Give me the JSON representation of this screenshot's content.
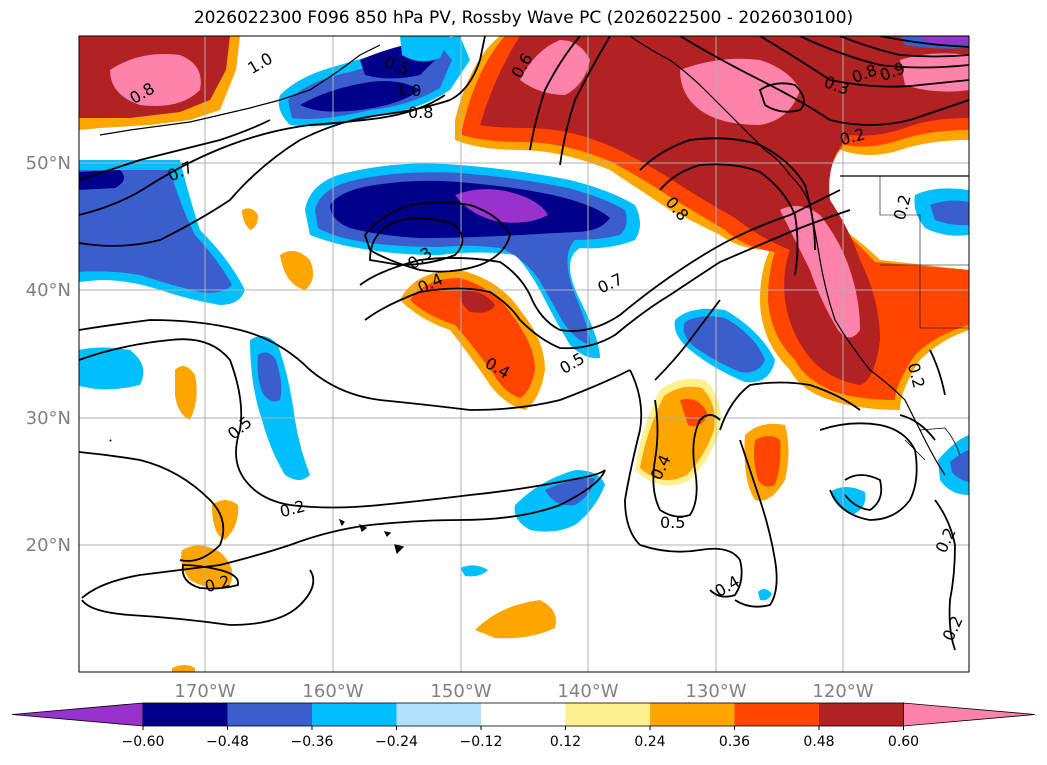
{
  "title": "2026022300 F096 850 hPa PV, Rossby Wave PC (2026022500 - 2026030100)",
  "lon_labels": [
    "170°W",
    "160°W",
    "150°W",
    "140°W",
    "130°W",
    "120°W"
  ],
  "lat_labels": [
    "20°N",
    "30°N",
    "40°N",
    "50°N"
  ],
  "colorbar": {
    "tick_labels": [
      "−0.60",
      "−0.48",
      "−0.36",
      "−0.24",
      "−0.12",
      "0.12",
      "0.24",
      "0.36",
      "0.48",
      "0.60"
    ],
    "colors": [
      "#9932cc",
      "#00008b",
      "#3a5fcd",
      "#00bfff",
      "#b0e2ff",
      "#ffffff",
      "#fff08f",
      "#ffa500",
      "#ff4500",
      "#b22222",
      "#ff82ab"
    ]
  },
  "contour_labels": {
    "c1": "0.8",
    "c2": "1.0",
    "c3": "0.5",
    "c4": "0.6",
    "c5": "1.0",
    "c6": "0.8",
    "c7": "0.3",
    "c8": "0.8",
    "c9": "0.9",
    "c10": "0.2",
    "c11": "0.7",
    "c12": "0.8",
    "c13": "0.3",
    "c14": "0.4",
    "c15": "0.7",
    "c16": "0.5",
    "c17": "0.4",
    "c18": "0.5",
    "c19": "0.2",
    "c20": "0.4",
    "c21": "0.5",
    "c22": "0.4",
    "c23": "0.2",
    "c24": "0.2",
    "c25": "0.2",
    "c26": "0.2",
    "c27": "0.2"
  }
}
